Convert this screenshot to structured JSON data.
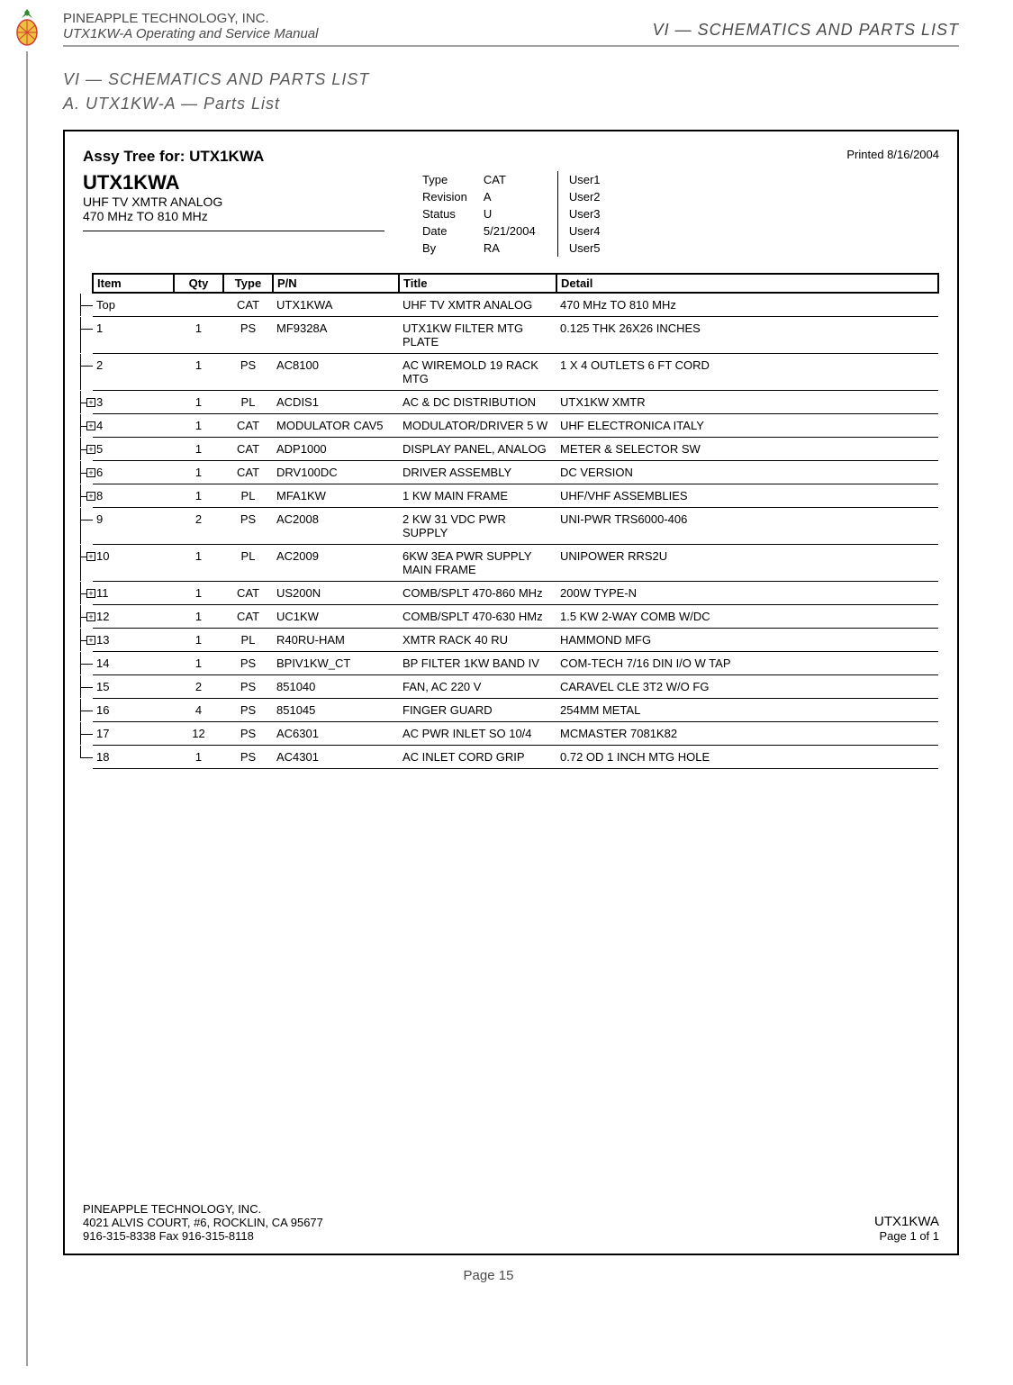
{
  "header": {
    "company": "PINEAPPLE TECHNOLOGY, INC.",
    "manual": "UTX1KW-A Operating and Service Manual",
    "section_right": "VI — SCHEMATICS AND PARTS LIST"
  },
  "titles": {
    "t1": "VI — SCHEMATICS AND PARTS LIST",
    "t2": "A.  UTX1KW-A — Parts List"
  },
  "doc": {
    "assy_for": "Assy Tree for:  UTX1KWA",
    "printed": "Printed 8/16/2004",
    "product": "UTX1KWA",
    "product_sub1": "UHF TV XMTR ANALOG",
    "product_sub2": "470 MHz TO 810 MHz",
    "meta_left": [
      {
        "label": "Type",
        "value": "CAT"
      },
      {
        "label": "Revision",
        "value": "A"
      },
      {
        "label": "Status",
        "value": "U"
      },
      {
        "label": "Date",
        "value": "5/21/2004"
      },
      {
        "label": "By",
        "value": "RA"
      }
    ],
    "meta_right": [
      {
        "label": "User1",
        "value": ""
      },
      {
        "label": "User2",
        "value": ""
      },
      {
        "label": "User3",
        "value": ""
      },
      {
        "label": "User4",
        "value": ""
      },
      {
        "label": "User5",
        "value": ""
      }
    ],
    "columns": [
      "Item",
      "Qty",
      "Type",
      "P/N",
      "Title",
      "Detail"
    ],
    "rows": [
      {
        "expand": false,
        "item": "Top",
        "qty": "",
        "type": "CAT",
        "pn": "UTX1KWA",
        "title": "UHF TV XMTR ANALOG",
        "detail": "470 MHz TO 810 MHz"
      },
      {
        "expand": false,
        "item": "1",
        "qty": "1",
        "type": "PS",
        "pn": "MF9328A",
        "title": "UTX1KW FILTER MTG PLATE",
        "detail": "0.125 THK  26X26 INCHES"
      },
      {
        "expand": false,
        "item": "2",
        "qty": "1",
        "type": "PS",
        "pn": "AC8100",
        "title": "AC WIREMOLD 19 RACK MTG",
        "detail": "1 X 4 OUTLETS 6 FT CORD"
      },
      {
        "expand": true,
        "item": "3",
        "qty": "1",
        "type": "PL",
        "pn": "ACDIS1",
        "title": "AC & DC DISTRIBUTION",
        "detail": "UTX1KW XMTR"
      },
      {
        "expand": true,
        "item": "4",
        "qty": "1",
        "type": "CAT",
        "pn": "MODULATOR CAV5",
        "title": "MODULATOR/DRIVER 5 W",
        "detail": "UHF ELECTRONICA ITALY"
      },
      {
        "expand": true,
        "item": "5",
        "qty": "1",
        "type": "CAT",
        "pn": "ADP1000",
        "title": "DISPLAY PANEL, ANALOG",
        "detail": "METER & SELECTOR SW"
      },
      {
        "expand": true,
        "item": "6",
        "qty": "1",
        "type": "CAT",
        "pn": "DRV100DC",
        "title": "DRIVER ASSEMBLY",
        "detail": "DC VERSION"
      },
      {
        "expand": true,
        "item": "8",
        "qty": "1",
        "type": "PL",
        "pn": "MFA1KW",
        "title": "1 KW MAIN FRAME",
        "detail": "UHF/VHF ASSEMBLIES"
      },
      {
        "expand": false,
        "item": "9",
        "qty": "2",
        "type": "PS",
        "pn": "AC2008",
        "title": "2 KW 31 VDC PWR SUPPLY",
        "detail": "UNI-PWR TRS6000-406"
      },
      {
        "expand": true,
        "item": "10",
        "qty": "1",
        "type": "PL",
        "pn": "AC2009",
        "title": "6KW 3EA PWR SUPPLY MAIN FRAME",
        "detail": "UNIPOWER RRS2U"
      },
      {
        "expand": true,
        "item": "11",
        "qty": "1",
        "type": "CAT",
        "pn": "US200N",
        "title": "COMB/SPLT 470-860 MHz",
        "detail": "200W TYPE-N"
      },
      {
        "expand": true,
        "item": "12",
        "qty": "1",
        "type": "CAT",
        "pn": "UC1KW",
        "title": "COMB/SPLT 470-630 HMz",
        "detail": "1.5 KW 2-WAY COMB W/DC"
      },
      {
        "expand": true,
        "item": "13",
        "qty": "1",
        "type": "PL",
        "pn": "R40RU-HAM",
        "title": "XMTR RACK 40 RU",
        "detail": "HAMMOND MFG"
      },
      {
        "expand": false,
        "item": "14",
        "qty": "1",
        "type": "PS",
        "pn": "BPIV1KW_CT",
        "title": "BP FILTER 1KW BAND IV",
        "detail": "COM-TECH 7/16 DIN I/O W TAP"
      },
      {
        "expand": false,
        "item": "15",
        "qty": "2",
        "type": "PS",
        "pn": "851040",
        "title": "FAN, AC 220 V",
        "detail": "CARAVEL CLE 3T2 W/O FG"
      },
      {
        "expand": false,
        "item": "16",
        "qty": "4",
        "type": "PS",
        "pn": "851045",
        "title": "FINGER GUARD",
        "detail": "254MM METAL"
      },
      {
        "expand": false,
        "item": "17",
        "qty": "12",
        "type": "PS",
        "pn": "AC6301",
        "title": "AC PWR INLET SO 10/4",
        "detail": "MCMASTER 7081K82"
      },
      {
        "expand": false,
        "item": "18",
        "qty": "1",
        "type": "PS",
        "pn": "AC4301",
        "title": "AC INLET CORD GRIP",
        "detail": "0.72 OD 1 INCH MTG HOLE"
      }
    ],
    "footer": {
      "company": "PINEAPPLE TECHNOLOGY, INC.",
      "addr": "4021 ALVIS COURT, #6, ROCKLIN, CA 95677",
      "phone": "916-315-8338   Fax 916-315-8118",
      "prod": "UTX1KWA",
      "page": "Page 1 of   1"
    }
  },
  "page_number": "Page 15",
  "colors": {
    "text_gray": "#4a4a4a",
    "rule_gray": "#a0a0a0",
    "logo_green": "#2e8b2e",
    "logo_yellow": "#f0c040",
    "logo_red": "#d04030"
  }
}
